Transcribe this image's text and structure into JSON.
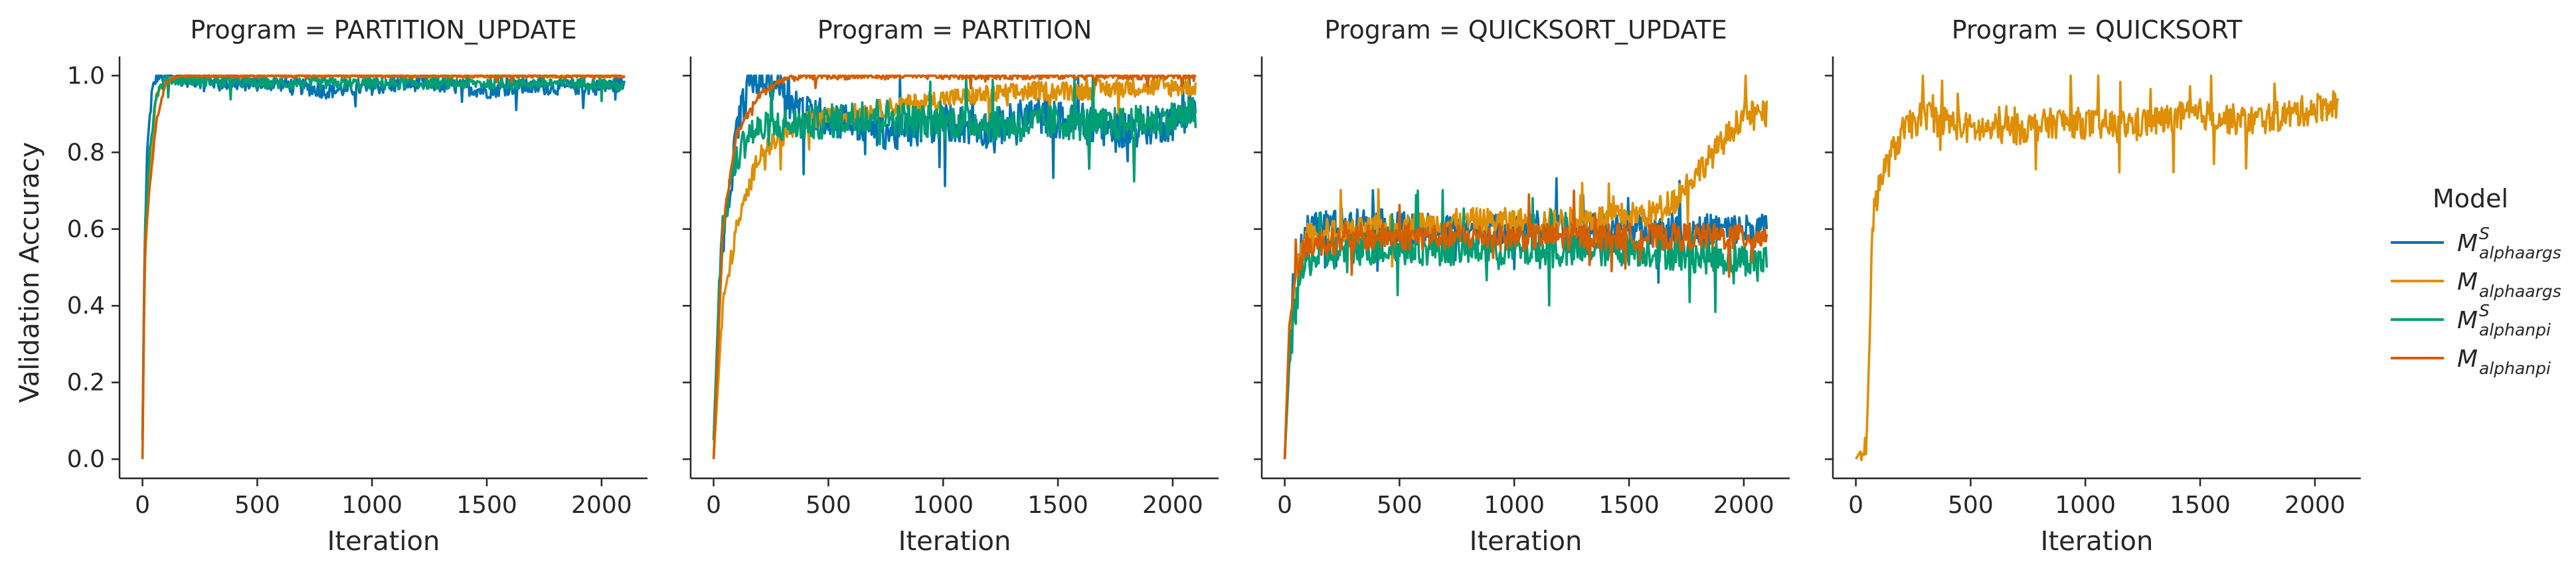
{
  "chart_data": {
    "type": "line",
    "ylabel": "Validation Accuracy",
    "xlabel": "Iteration",
    "xlim": [
      -100,
      2200
    ],
    "ylim": [
      -0.05,
      1.05
    ],
    "xticks": [
      0,
      500,
      1000,
      1500,
      2000
    ],
    "yticks": [
      0.0,
      0.2,
      0.4,
      0.6,
      0.8,
      1.0
    ],
    "grid": false,
    "legend_position": "right",
    "legend": {
      "title": "Model",
      "entries": [
        {
          "base": "M",
          "sup": "S",
          "sub": "alphaargs",
          "color": "#0173b2"
        },
        {
          "base": "M",
          "sup": "",
          "sub": "alphaargs",
          "color": "#de8f05"
        },
        {
          "base": "M",
          "sup": "S",
          "sub": "alphanpi",
          "color": "#029e73"
        },
        {
          "base": "M",
          "sup": "",
          "sub": "alphanpi",
          "color": "#d55e00"
        }
      ]
    },
    "panels": [
      {
        "title": "Program = PARTITION_UPDATE",
        "series": [
          {
            "key": "S_alphaargs",
            "color": "#0173b2",
            "points": [
              [
                0,
                0.05
              ],
              [
                10,
                0.55
              ],
              [
                20,
                0.8
              ],
              [
                40,
                0.95
              ],
              [
                60,
                1.0
              ],
              [
                100,
                1.0
              ],
              [
                200,
                0.99
              ],
              [
                400,
                0.98
              ],
              [
                600,
                0.98
              ],
              [
                800,
                0.96
              ],
              [
                1000,
                0.97
              ],
              [
                1200,
                0.98
              ],
              [
                1400,
                0.97
              ],
              [
                1500,
                0.96
              ],
              [
                1600,
                0.97
              ],
              [
                1800,
                0.97
              ],
              [
                2000,
                0.97
              ],
              [
                2100,
                0.98
              ]
            ],
            "noise": 0.02
          },
          {
            "key": "alphaargs",
            "color": "#de8f05",
            "points": [
              [
                0,
                0.05
              ],
              [
                10,
                0.5
              ],
              [
                30,
                0.75
              ],
              [
                60,
                0.95
              ],
              [
                100,
                0.99
              ],
              [
                200,
                1.0
              ],
              [
                500,
                1.0
              ],
              [
                1000,
                1.0
              ],
              [
                2100,
                1.0
              ]
            ],
            "noise": 0.005
          },
          {
            "key": "S_alphanpi",
            "color": "#029e73",
            "points": [
              [
                0,
                0.05
              ],
              [
                10,
                0.6
              ],
              [
                30,
                0.8
              ],
              [
                60,
                0.95
              ],
              [
                100,
                0.99
              ],
              [
                200,
                0.99
              ],
              [
                500,
                0.98
              ],
              [
                1000,
                0.98
              ],
              [
                1500,
                0.98
              ],
              [
                2000,
                0.98
              ],
              [
                2100,
                0.97
              ]
            ],
            "noise": 0.015
          },
          {
            "key": "alphanpi",
            "color": "#d55e00",
            "points": [
              [
                0,
                0.0
              ],
              [
                10,
                0.55
              ],
              [
                30,
                0.7
              ],
              [
                60,
                0.88
              ],
              [
                100,
                0.98
              ],
              [
                150,
                1.0
              ],
              [
                500,
                1.0
              ],
              [
                2100,
                1.0
              ]
            ],
            "noise": 0.005
          }
        ]
      },
      {
        "title": "Program = PARTITION",
        "series": [
          {
            "key": "S_alphaargs",
            "color": "#0173b2",
            "points": [
              [
                0,
                0.05
              ],
              [
                40,
                0.55
              ],
              [
                100,
                0.85
              ],
              [
                150,
                0.98
              ],
              [
                200,
                0.99
              ],
              [
                300,
                0.98
              ],
              [
                400,
                0.9
              ],
              [
                600,
                0.88
              ],
              [
                800,
                0.85
              ],
              [
                1000,
                0.88
              ],
              [
                1200,
                0.86
              ],
              [
                1400,
                0.9
              ],
              [
                1600,
                0.87
              ],
              [
                1800,
                0.86
              ],
              [
                2000,
                0.88
              ],
              [
                2100,
                0.92
              ]
            ],
            "noise": 0.05
          },
          {
            "key": "alphaargs",
            "color": "#de8f05",
            "points": [
              [
                0,
                0.0
              ],
              [
                40,
                0.4
              ],
              [
                100,
                0.6
              ],
              [
                200,
                0.8
              ],
              [
                400,
                0.88
              ],
              [
                600,
                0.9
              ],
              [
                800,
                0.92
              ],
              [
                1000,
                0.94
              ],
              [
                1200,
                0.95
              ],
              [
                1400,
                0.96
              ],
              [
                1600,
                0.96
              ],
              [
                1800,
                0.97
              ],
              [
                2000,
                0.97
              ],
              [
                2100,
                0.97
              ]
            ],
            "noise": 0.025
          },
          {
            "key": "S_alphanpi",
            "color": "#029e73",
            "points": [
              [
                0,
                0.05
              ],
              [
                30,
                0.55
              ],
              [
                80,
                0.75
              ],
              [
                150,
                0.85
              ],
              [
                300,
                0.87
              ],
              [
                500,
                0.88
              ],
              [
                700,
                0.9
              ],
              [
                900,
                0.88
              ],
              [
                1100,
                0.88
              ],
              [
                1300,
                0.87
              ],
              [
                1500,
                0.88
              ],
              [
                1700,
                0.87
              ],
              [
                1900,
                0.88
              ],
              [
                2100,
                0.9
              ]
            ],
            "noise": 0.045
          },
          {
            "key": "alphanpi",
            "color": "#d55e00",
            "points": [
              [
                0,
                0.0
              ],
              [
                40,
                0.6
              ],
              [
                100,
                0.85
              ],
              [
                200,
                0.95
              ],
              [
                300,
                0.99
              ],
              [
                400,
                1.0
              ],
              [
                2100,
                1.0
              ]
            ],
            "noise": 0.01
          }
        ]
      },
      {
        "title": "Program = QUICKSORT_UPDATE",
        "series": [
          {
            "key": "S_alphaargs",
            "color": "#0173b2",
            "points": [
              [
                0,
                0.0
              ],
              [
                20,
                0.3
              ],
              [
                40,
                0.5
              ],
              [
                100,
                0.6
              ],
              [
                300,
                0.62
              ],
              [
                600,
                0.6
              ],
              [
                900,
                0.6
              ],
              [
                1200,
                0.6
              ],
              [
                1500,
                0.6
              ],
              [
                1800,
                0.6
              ],
              [
                2100,
                0.6
              ]
            ],
            "noise": 0.04
          },
          {
            "key": "alphaargs",
            "color": "#de8f05",
            "points": [
              [
                0,
                0.0
              ],
              [
                20,
                0.3
              ],
              [
                50,
                0.5
              ],
              [
                100,
                0.58
              ],
              [
                400,
                0.6
              ],
              [
                800,
                0.62
              ],
              [
                1200,
                0.62
              ],
              [
                1600,
                0.64
              ],
              [
                1700,
                0.68
              ],
              [
                1800,
                0.75
              ],
              [
                1900,
                0.82
              ],
              [
                2000,
                0.9
              ],
              [
                2100,
                0.9
              ]
            ],
            "noise": 0.035
          },
          {
            "key": "S_alphanpi",
            "color": "#029e73",
            "points": [
              [
                0,
                0.0
              ],
              [
                20,
                0.25
              ],
              [
                50,
                0.45
              ],
              [
                100,
                0.52
              ],
              [
                300,
                0.55
              ],
              [
                600,
                0.55
              ],
              [
                900,
                0.55
              ],
              [
                1200,
                0.54
              ],
              [
                1500,
                0.55
              ],
              [
                1800,
                0.53
              ],
              [
                2100,
                0.52
              ]
            ],
            "noise": 0.045
          },
          {
            "key": "alphanpi",
            "color": "#d55e00",
            "points": [
              [
                0,
                0.0
              ],
              [
                20,
                0.35
              ],
              [
                50,
                0.5
              ],
              [
                100,
                0.56
              ],
              [
                400,
                0.58
              ],
              [
                800,
                0.58
              ],
              [
                1200,
                0.58
              ],
              [
                1600,
                0.58
              ],
              [
                2000,
                0.58
              ],
              [
                2100,
                0.58
              ]
            ],
            "noise": 0.035
          }
        ]
      },
      {
        "title": "Program = QUICKSORT",
        "series": [
          {
            "key": "alphaargs",
            "color": "#de8f05",
            "points": [
              [
                0,
                0.0
              ],
              [
                50,
                0.05
              ],
              [
                70,
                0.6
              ],
              [
                100,
                0.72
              ],
              [
                200,
                0.85
              ],
              [
                300,
                0.9
              ],
              [
                500,
                0.86
              ],
              [
                700,
                0.86
              ],
              [
                900,
                0.88
              ],
              [
                1100,
                0.87
              ],
              [
                1300,
                0.88
              ],
              [
                1500,
                0.9
              ],
              [
                1700,
                0.88
              ],
              [
                1900,
                0.9
              ],
              [
                2100,
                0.93
              ]
            ],
            "noise": 0.04
          }
        ]
      }
    ]
  }
}
